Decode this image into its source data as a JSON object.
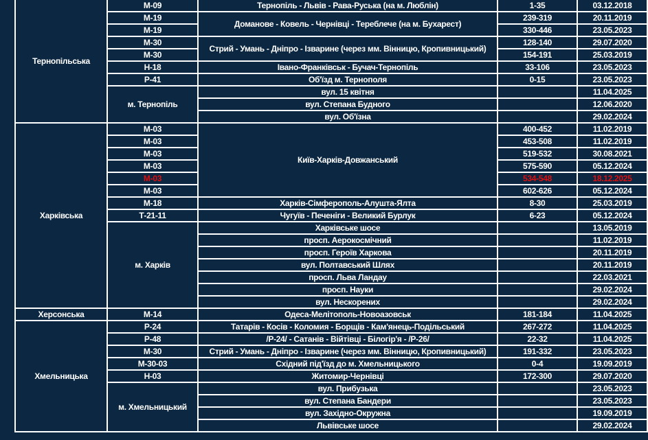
{
  "colors": {
    "background": "#0b2741",
    "text": "#ffffff",
    "border": "#ffffff",
    "highlight": "#e01010"
  },
  "regions": [
    {
      "name": "Тернопільська",
      "rows": [
        {
          "road": "М-09",
          "name": "Тернопіль - Львів - Рава-Руська (на м. Люблін)",
          "km": "1-35",
          "date": "03.12.2018"
        },
        {
          "road": "М-19",
          "name": "Доманове - Ковель - Чернівці - Тереблече (на м. Бухарест)",
          "km": "239-319",
          "date": "20.11.2019"
        },
        {
          "road": "М-19",
          "name": null,
          "km": "330-446",
          "date": "23.05.2023"
        },
        {
          "road": "М-30",
          "name": "Стрий - Умань - Дніпро - Ізварине (через мм. Вінницю, Кропивницький)",
          "km": "128-140",
          "date": "29.07.2020"
        },
        {
          "road": "М-30",
          "name": null,
          "km": "154-191",
          "date": "25.03.2019"
        },
        {
          "road": "Н-18",
          "name": "Івано-Франківськ - Бучач-Тернопіль",
          "km": "33-106",
          "date": "23.05.2023"
        },
        {
          "road": "Р-41",
          "name": "Об'їзд м. Тернополя",
          "km": "0-15",
          "date": "23.05.2023"
        },
        {
          "road": "м. Тернопіль",
          "name": "вул. 15 квітня",
          "km": "",
          "date": "11.04.2025"
        },
        {
          "road": null,
          "name": "вул. Степана Будного",
          "km": "",
          "date": "12.06.2020"
        },
        {
          "road": null,
          "name": "вул. Об'їзна",
          "km": "",
          "date": "29.02.2024"
        }
      ]
    },
    {
      "name": "Харківська",
      "rows": [
        {
          "road": "М-03",
          "name": "Київ-Харків-Довжанський",
          "km": "400-452",
          "date": "11.02.2019"
        },
        {
          "road": "М-03",
          "name": null,
          "km": "453-508",
          "date": "11.02.2019"
        },
        {
          "road": "М-03",
          "name": null,
          "km": "519-532",
          "date": "30.08.2021"
        },
        {
          "road": "М-03",
          "name": null,
          "km": "575-590",
          "date": "05.12.2024"
        },
        {
          "road": "М-03",
          "name": null,
          "km": "534-548",
          "date": "18.12.2025",
          "highlight": true
        },
        {
          "road": "М-03",
          "name": null,
          "km": "602-626",
          "date": "05.12.2024"
        },
        {
          "road": "М-18",
          "name": "Харків-Сімферополь-Алушта-Ялта",
          "km": "8-30",
          "date": "25.03.2019"
        },
        {
          "road": "Т-21-11",
          "name": "Чугуїв - Печеніги - Великий Бурлук",
          "km": "6-23",
          "date": "05.12.2024"
        },
        {
          "road": "м. Харків",
          "name": "Харківське шосе",
          "km": "",
          "date": "13.05.2019"
        },
        {
          "road": null,
          "name": "просп. Аерокосмічний",
          "km": "",
          "date": "11.02.2019"
        },
        {
          "road": null,
          "name": "просп. Героїв Харкова",
          "km": "",
          "date": "20.11.2019"
        },
        {
          "road": null,
          "name": "вул. Полтавський Шлях",
          "km": "",
          "date": "20.11.2019"
        },
        {
          "road": null,
          "name": "просп. Льва Ландау",
          "km": "",
          "date": "22.03.2021"
        },
        {
          "road": null,
          "name": "просп. Науки",
          "km": "",
          "date": "29.02.2024"
        },
        {
          "road": null,
          "name": "вул. Нескорених",
          "km": "",
          "date": "29.02.2024"
        }
      ]
    },
    {
      "name": "Херсонська",
      "rows": [
        {
          "road": "М-14",
          "name": "Одеса-Мелітополь-Новоазовськ",
          "km": "181-184",
          "date": "11.04.2025"
        }
      ]
    },
    {
      "name": "Хмельницька",
      "rows": [
        {
          "road": "Р-24",
          "name": "Татарів - Косів - Коломия - Борщів - Кам'янець-Подільський",
          "km": "267-272",
          "date": "11.04.2025"
        },
        {
          "road": "Р-48",
          "name": "/Р-24/ - Сатанів - Війтівці - Білогір'я - /Р-26/",
          "km": "22-32",
          "date": "11.04.2025"
        },
        {
          "road": "М-30",
          "name": "Стрий - Умань - Дніпро - Ізварине (через мм. Вінницю, Кропивницький)",
          "km": "191-332",
          "date": "23.05.2023"
        },
        {
          "road": "М-30-03",
          "name": "Східний під'їзд до м. Хмельницького",
          "km": "0-4",
          "date": "19.09.2019"
        },
        {
          "road": "Н-03",
          "name": "Житомир-Чернівці",
          "km": "172-300",
          "date": "29.07.2020"
        },
        {
          "road": "м. Хмельницький",
          "name": "вул. Прибузька",
          "km": "",
          "date": "23.05.2023"
        },
        {
          "road": null,
          "name": "вул. Степана Бандери",
          "km": "",
          "date": "23.05.2023"
        },
        {
          "road": null,
          "name": "вул. Західно-Окружна",
          "km": "",
          "date": "19.09.2019"
        },
        {
          "road": null,
          "name": "Львівське шосе",
          "km": "",
          "date": "29.02.2024"
        }
      ]
    }
  ]
}
